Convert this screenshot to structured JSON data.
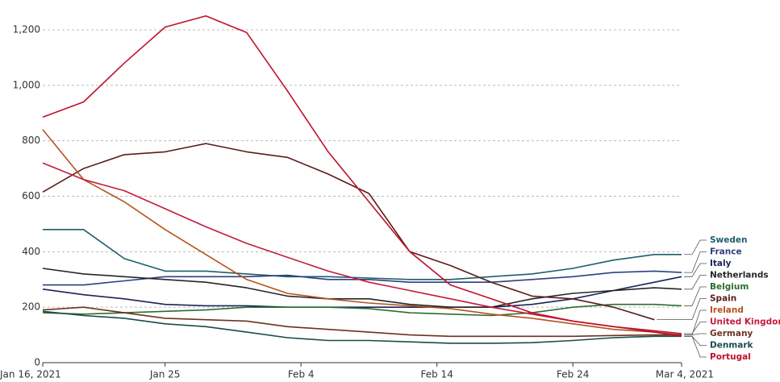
{
  "chart_data": {
    "type": "line",
    "x": [
      "2021-01-16",
      "2021-01-19",
      "2021-01-22",
      "2021-01-25",
      "2021-01-28",
      "2021-01-31",
      "2021-02-03",
      "2021-02-06",
      "2021-02-09",
      "2021-02-12",
      "2021-02-15",
      "2021-02-18",
      "2021-02-21",
      "2021-02-24",
      "2021-02-27",
      "2021-03-02",
      "2021-03-04"
    ],
    "xlim": [
      "2021-01-16",
      "2021-03-04"
    ],
    "xticks": [
      {
        "value": "2021-01-16",
        "label": "Jan 16, 2021"
      },
      {
        "value": "2021-01-25",
        "label": "Jan 25"
      },
      {
        "value": "2021-02-04",
        "label": "Feb 4"
      },
      {
        "value": "2021-02-14",
        "label": "Feb 14"
      },
      {
        "value": "2021-02-24",
        "label": "Feb 24"
      },
      {
        "value": "2021-03-04",
        "label": "Mar 4, 2021"
      }
    ],
    "ylim": [
      0,
      1200
    ],
    "yticks": [
      0,
      200,
      400,
      600,
      800,
      {
        "value": 1000,
        "label": "1,000"
      },
      {
        "value": 1200,
        "label": "1,200"
      }
    ],
    "grid": true,
    "series": [
      {
        "name": "Sweden",
        "color": "#1d5e6b",
        "values": [
          480,
          480,
          375,
          330,
          330,
          320,
          310,
          310,
          305,
          300,
          300,
          310,
          320,
          340,
          370,
          390,
          390
        ]
      },
      {
        "name": "France",
        "color": "#2d3f82",
        "values": [
          280,
          280,
          295,
          310,
          310,
          310,
          315,
          300,
          300,
          290,
          290,
          290,
          300,
          310,
          325,
          330,
          325
        ]
      },
      {
        "name": "Italy",
        "color": "#1c2358",
        "values": [
          265,
          245,
          230,
          210,
          205,
          205,
          200,
          200,
          200,
          200,
          200,
          200,
          210,
          230,
          260,
          290,
          310
        ]
      },
      {
        "name": "Netherlands",
        "color": "#262626",
        "values": [
          340,
          320,
          310,
          300,
          290,
          270,
          240,
          230,
          230,
          210,
          200,
          200,
          230,
          250,
          260,
          270,
          265
        ]
      },
      {
        "name": "Belgium",
        "color": "#2b6d2e",
        "values": [
          180,
          175,
          180,
          185,
          190,
          200,
          200,
          200,
          195,
          180,
          175,
          170,
          180,
          200,
          210,
          210,
          205
        ]
      },
      {
        "name": "Spain",
        "color": "#5a1c1c",
        "values": [
          615,
          700,
          750,
          760,
          790,
          760,
          740,
          680,
          610,
          400,
          350,
          290,
          240,
          230,
          200,
          155,
          null
        ]
      },
      {
        "name": "Ireland",
        "color": "#b5521d",
        "values": [
          840,
          660,
          580,
          480,
          390,
          300,
          250,
          230,
          215,
          205,
          195,
          175,
          160,
          140,
          120,
          110,
          100
        ]
      },
      {
        "name": "United Kingdom",
        "color": "#c41a3c",
        "values": [
          720,
          660,
          620,
          555,
          490,
          430,
          380,
          330,
          290,
          260,
          230,
          200,
          175,
          150,
          130,
          115,
          105
        ]
      },
      {
        "name": "Germany",
        "color": "#6d3220",
        "values": [
          190,
          200,
          180,
          160,
          155,
          150,
          130,
          120,
          110,
          100,
          95,
          95,
          95,
          95,
          98,
          100,
          100
        ]
      },
      {
        "name": "Denmark",
        "color": "#1b4b4b",
        "values": [
          185,
          170,
          160,
          140,
          130,
          110,
          90,
          80,
          80,
          75,
          70,
          70,
          72,
          80,
          90,
          95,
          95
        ]
      },
      {
        "name": "Portugal",
        "color": "#c0102a",
        "values": [
          885,
          940,
          1080,
          1210,
          1250,
          1190,
          980,
          760,
          580,
          400,
          280,
          230,
          180,
          150,
          130,
          110,
          95
        ]
      }
    ]
  }
}
